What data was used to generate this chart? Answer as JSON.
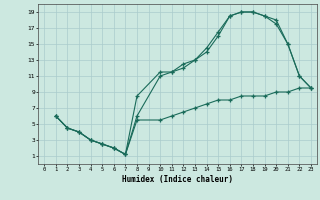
{
  "xlabel": "Humidex (Indice chaleur)",
  "xlim": [
    -0.5,
    23.5
  ],
  "ylim": [
    0,
    20
  ],
  "xticks": [
    0,
    1,
    2,
    3,
    4,
    5,
    6,
    7,
    8,
    9,
    10,
    11,
    12,
    13,
    14,
    15,
    16,
    17,
    18,
    19,
    20,
    21,
    22,
    23
  ],
  "yticks": [
    1,
    3,
    5,
    7,
    9,
    11,
    13,
    15,
    17,
    19
  ],
  "background_color": "#cce8e0",
  "grid_color": "#aacccc",
  "line_color": "#1a6b5a",
  "line1_x": [
    1,
    2,
    3,
    4,
    5,
    6,
    7,
    8,
    10,
    11,
    12,
    13,
    14,
    15,
    16,
    17,
    18,
    19,
    20,
    21,
    22,
    23
  ],
  "line1_y": [
    6,
    4.5,
    4,
    3,
    2.5,
    2,
    1.2,
    8.5,
    11.5,
    11.5,
    12.5,
    13,
    14.5,
    16.5,
    18.5,
    19,
    19,
    18.5,
    18,
    15,
    11,
    9.5
  ],
  "line2_x": [
    1,
    2,
    3,
    4,
    5,
    6,
    7,
    8,
    10,
    11,
    12,
    13,
    14,
    15,
    16,
    17,
    18,
    19,
    20,
    21,
    22,
    23
  ],
  "line2_y": [
    6,
    4.5,
    4,
    3,
    2.5,
    2,
    1.2,
    6,
    11,
    11.5,
    12,
    13,
    14,
    16,
    18.5,
    19,
    19,
    18.5,
    17.5,
    15,
    11,
    9.5
  ],
  "line3_x": [
    1,
    2,
    3,
    4,
    5,
    6,
    7,
    8,
    10,
    11,
    12,
    13,
    14,
    15,
    16,
    17,
    18,
    19,
    20,
    21,
    22,
    23
  ],
  "line3_y": [
    6,
    4.5,
    4,
    3,
    2.5,
    2,
    1.2,
    5.5,
    5.5,
    6,
    6.5,
    7,
    7.5,
    8,
    8,
    8.5,
    8.5,
    8.5,
    9,
    9,
    9.5,
    9.5
  ]
}
